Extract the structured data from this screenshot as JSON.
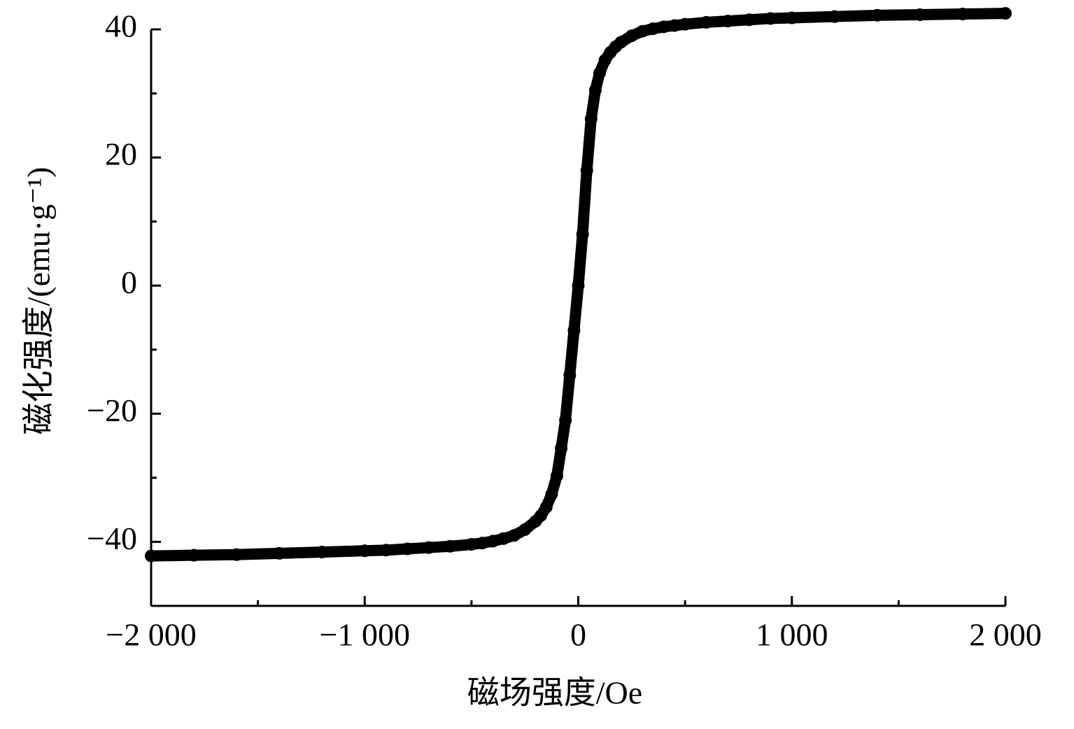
{
  "chart_data": {
    "type": "scatter",
    "x_label": "磁场强度/Oe",
    "y_label": "磁化强度/(emu·g⁻¹)",
    "color": "#000000",
    "xlim": [
      -2000,
      2000
    ],
    "ylim": [
      -50,
      40
    ],
    "xticks": [
      {
        "value": -2000,
        "label": "−2 000"
      },
      {
        "value": -1000,
        "label": "−1 000"
      },
      0,
      {
        "value": 1000,
        "label": "1 000"
      },
      {
        "value": 2000,
        "label": "2 000"
      }
    ],
    "xminorticks": [
      -1500,
      -500,
      500,
      1500
    ],
    "yticks": [
      {
        "value": -40,
        "label": "−40"
      },
      {
        "value": -20,
        "label": "−20"
      },
      0,
      20,
      40
    ],
    "yminorticks": [
      -30,
      -10,
      10,
      30
    ],
    "x": [
      -2000,
      -1800,
      -1600,
      -1400,
      -1200,
      -1000,
      -900,
      -800,
      -700,
      -600,
      -500,
      -450,
      -400,
      -350,
      -300,
      -250,
      -200,
      -175,
      -150,
      -125,
      -100,
      -80,
      -60,
      -40,
      -20,
      0,
      20,
      40,
      60,
      80,
      100,
      125,
      150,
      175,
      200,
      250,
      300,
      350,
      400,
      450,
      500,
      600,
      700,
      800,
      900,
      1000,
      1200,
      1400,
      1600,
      1800,
      2000
    ],
    "values": [
      -42.2,
      -42.1,
      -42.0,
      -41.8,
      -41.6,
      -41.4,
      -41.3,
      -41.1,
      -40.9,
      -40.7,
      -40.4,
      -40.2,
      -39.9,
      -39.5,
      -39.0,
      -38.1,
      -36.8,
      -35.9,
      -34.6,
      -32.6,
      -29.7,
      -25.4,
      -21,
      -14,
      -7,
      0,
      8,
      18,
      26,
      30.5,
      33.2,
      35.2,
      36.4,
      37.3,
      38,
      39,
      39.7,
      40.1,
      40.4,
      40.6,
      40.8,
      41.1,
      41.3,
      41.5,
      41.7,
      41.8,
      42.0,
      42.2,
      42.3,
      42.4,
      42.5
    ]
  }
}
